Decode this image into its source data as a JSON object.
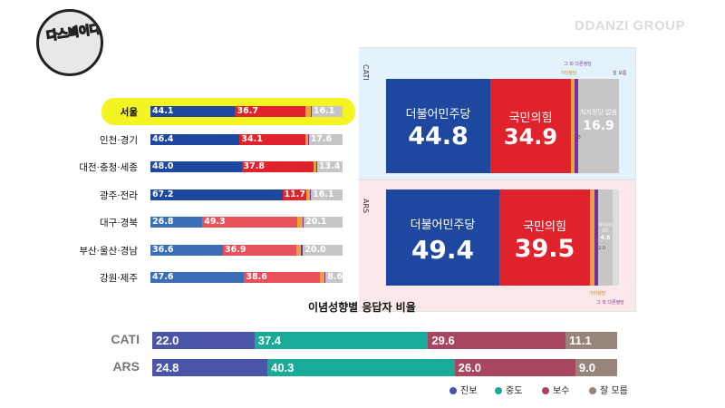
{
  "brand": "DDANZI GROUP",
  "logo_text": "다스뵈이다",
  "colors": {
    "dem": "#1e48a0",
    "ppp": "#e0222d",
    "other": "#e9a33a",
    "minor": "#7b2ea0",
    "none": "#c6c6c6",
    "progressive": "#4b55a7",
    "moderate": "#1aab98",
    "conservative": "#a8455f",
    "unknown": "#97847a"
  },
  "chart_data": [
    {
      "type": "bar",
      "stacked": true,
      "orientation": "horizontal",
      "title": "",
      "categories": [
        "서울",
        "인천·경기",
        "대전·충청·세종",
        "광주·전라",
        "대구·경북",
        "부산·울산·경남",
        "강원·제주"
      ],
      "highlight": "서울",
      "series": [
        {
          "name": "더불어민주당",
          "values": [
            44.1,
            46.4,
            48.0,
            67.2,
            26.8,
            36.6,
            47.6
          ]
        },
        {
          "name": "국민의힘",
          "values": [
            36.7,
            34.1,
            37.8,
            11.7,
            49.3,
            36.9,
            38.6
          ]
        },
        {
          "name": "기타정당",
          "values": [
            2.5,
            1.5,
            1.5,
            2.0,
            2.5,
            2.5,
            2.0
          ]
        },
        {
          "name": "그 외 다른정당",
          "values": [
            0.6,
            0.4,
            0.5,
            0.5,
            0.6,
            1.0,
            0.8
          ]
        },
        {
          "name": "지지정당 없음",
          "values": [
            16.1,
            17.6,
            13.4,
            16.1,
            20.1,
            20.0,
            8.6
          ]
        }
      ]
    },
    {
      "type": "bar",
      "stacked": true,
      "title": "CATI",
      "series": [
        {
          "name": "더불어민주당",
          "values": [
            44.8
          ]
        },
        {
          "name": "국민의힘",
          "values": [
            34.9
          ]
        },
        {
          "name": "기타정당",
          "values": [
            1.5
          ]
        },
        {
          "name": "그 외 다른정당",
          "values": [
            0.9
          ]
        },
        {
          "name": "지지정당 없음",
          "values": [
            16.9
          ]
        },
        {
          "name": "잘 모름",
          "values": [
            1.0
          ]
        }
      ]
    },
    {
      "type": "bar",
      "stacked": true,
      "title": "ARS",
      "series": [
        {
          "name": "더불어민주당",
          "values": [
            49.4
          ]
        },
        {
          "name": "국민의힘",
          "values": [
            39.5
          ]
        },
        {
          "name": "기타정당",
          "values": [
            2.0
          ]
        },
        {
          "name": "그 외 다른정당",
          "values": [
            0.8
          ]
        },
        {
          "name": "지지정당 없음",
          "values": [
            4.8
          ]
        },
        {
          "name": "잘 모름",
          "values": [
            3.5
          ]
        }
      ]
    },
    {
      "type": "bar",
      "stacked": true,
      "orientation": "horizontal",
      "title": "이념성향별 응답자 비율",
      "categories": [
        "CATI",
        "ARS"
      ],
      "series": [
        {
          "name": "진보",
          "values": [
            22.0,
            24.8
          ]
        },
        {
          "name": "중도",
          "values": [
            37.4,
            40.3
          ]
        },
        {
          "name": "보수",
          "values": [
            29.6,
            26.0
          ]
        },
        {
          "name": "잘 모름",
          "values": [
            11.1,
            9.0
          ]
        }
      ],
      "legend": "bottom-right"
    }
  ],
  "panel_labels": {
    "dem": "더불어민주당",
    "ppp": "국민의힘",
    "none": "지지정당 없음",
    "none_short": "지지정당 없음",
    "other": "기타정당",
    "minor": "그 외 다른정당",
    "unknown": "잘 모름",
    "cati_dem_value": "44.8",
    "cati_ppp_value": "34.9",
    "cati_none_value": "16.9",
    "ars_dem_value": "49.4",
    "ars_ppp_value": "39.5",
    "ars_none_value": "4.8",
    "cati_small": "1.5",
    "ars_small": "2.0"
  }
}
